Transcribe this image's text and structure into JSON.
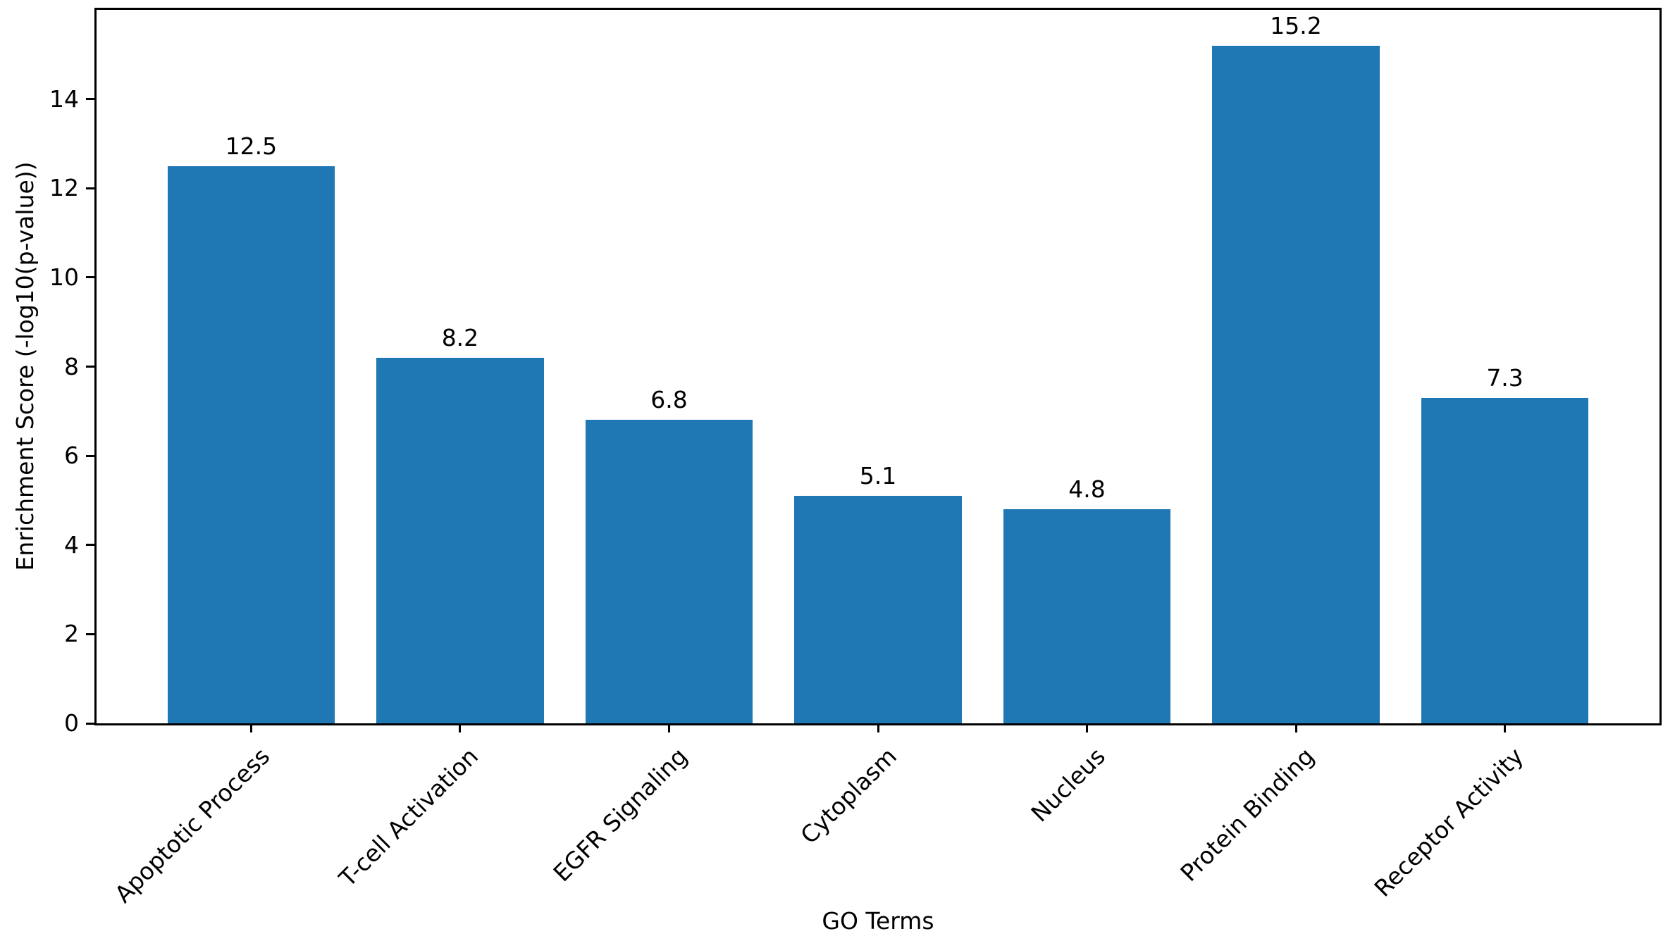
{
  "chart_data": {
    "type": "bar",
    "title": "",
    "xlabel": "GO Terms",
    "ylabel": "Enrichment Score (-log10(p-value))",
    "categories": [
      "Apoptotic Process",
      "T-cell Activation",
      "EGFR Signaling",
      "Cytoplasm",
      "Nucleus",
      "Protein Binding",
      "Receptor Activity"
    ],
    "values": [
      12.5,
      8.2,
      6.8,
      5.1,
      4.8,
      15.2,
      7.3
    ],
    "value_labels": [
      "12.5",
      "8.2",
      "6.8",
      "5.1",
      "4.8",
      "15.2",
      "7.3"
    ],
    "ylim": [
      0,
      16
    ],
    "yticks": [
      0,
      2,
      4,
      6,
      8,
      10,
      12,
      14
    ],
    "bar_color": "#1f77b4",
    "axis_color": "#000000",
    "text_color": "#000000",
    "background_color": "#ffffff",
    "grid": false,
    "legend_position": "none",
    "x_tick_label_rotation_deg": 45
  }
}
